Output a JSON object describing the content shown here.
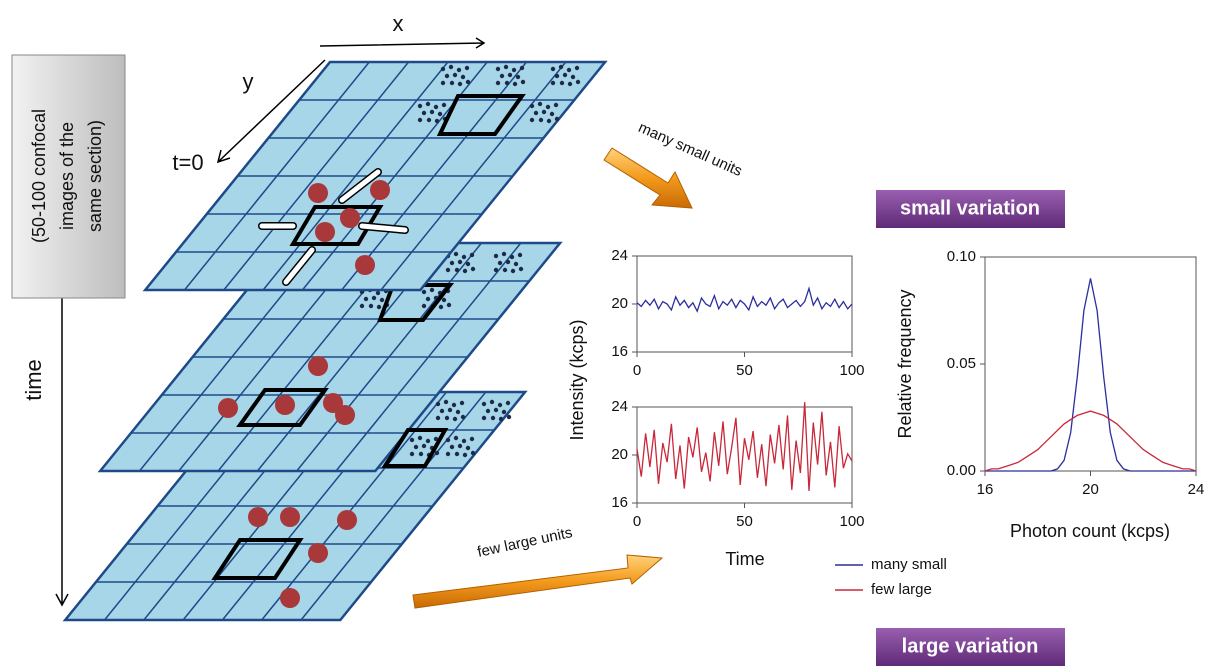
{
  "diagram": {
    "x_axis": "x",
    "y_axis": "y",
    "t0": "t=0",
    "time": "time",
    "stack_note": [
      "(50-100 confocal",
      "images of the",
      "same section)"
    ],
    "arrow_top": "many small units",
    "arrow_bottom": "few large units",
    "badge_top": "small variation",
    "badge_bottom": "large variation"
  },
  "chart_data": [
    {
      "type": "line",
      "y_label": "Intensity (kcps)",
      "color": "#2b2f9e",
      "x": [
        0,
        2,
        4,
        6,
        8,
        10,
        12,
        14,
        16,
        18,
        20,
        22,
        24,
        26,
        28,
        30,
        32,
        34,
        36,
        38,
        40,
        42,
        44,
        46,
        48,
        50,
        52,
        54,
        56,
        58,
        60,
        62,
        64,
        66,
        68,
        70,
        72,
        74,
        76,
        78,
        80,
        82,
        84,
        86,
        88,
        90,
        92,
        94,
        96,
        98,
        100
      ],
      "values": [
        20.1,
        19.8,
        20.3,
        19.9,
        20.4,
        19.6,
        20.2,
        20.0,
        19.5,
        20.6,
        19.9,
        20.3,
        19.7,
        20.1,
        19.4,
        20.5,
        20.0,
        19.8,
        20.7,
        19.6,
        20.2,
        19.9,
        20.4,
        19.7,
        20.3,
        20.0,
        19.5,
        20.6,
        19.8,
        20.2,
        19.9,
        20.5,
        19.6,
        20.1,
        20.4,
        19.7,
        20.0,
        20.3,
        19.8,
        20.2,
        21.3,
        19.9,
        20.5,
        19.6,
        20.1,
        19.8,
        20.4,
        19.7,
        20.2,
        19.6,
        20.0
      ],
      "xlim": [
        0,
        100
      ],
      "xticks": [
        0,
        50,
        100
      ],
      "ylim": [
        16,
        24
      ],
      "yticks": [
        16,
        20,
        24
      ]
    },
    {
      "type": "line",
      "x_label": "Time",
      "color": "#c8283a",
      "x": [
        0,
        2,
        4,
        6,
        8,
        10,
        12,
        14,
        16,
        18,
        20,
        22,
        24,
        26,
        28,
        30,
        32,
        34,
        36,
        38,
        40,
        42,
        44,
        46,
        48,
        50,
        52,
        54,
        56,
        58,
        60,
        62,
        64,
        66,
        68,
        70,
        72,
        74,
        76,
        78,
        80,
        82,
        84,
        86,
        88,
        90,
        92,
        94,
        96,
        98,
        100
      ],
      "values": [
        20.5,
        18.2,
        21.8,
        19.0,
        22.1,
        17.6,
        21.0,
        19.4,
        22.6,
        18.0,
        20.8,
        17.2,
        21.5,
        19.8,
        22.3,
        18.6,
        20.2,
        17.8,
        21.9,
        19.1,
        22.8,
        18.4,
        20.6,
        23.1,
        17.5,
        21.4,
        19.6,
        22.0,
        18.1,
        20.9,
        17.4,
        21.7,
        19.3,
        22.5,
        18.8,
        23.3,
        17.1,
        21.2,
        18.5,
        24.4,
        17.0,
        22.7,
        19.2,
        23.6,
        18.3,
        21.1,
        17.3,
        22.4,
        18.9,
        20.1,
        19.5
      ],
      "xlim": [
        0,
        100
      ],
      "xticks": [
        0,
        50,
        100
      ],
      "ylim": [
        16,
        24
      ],
      "yticks": [
        16,
        20,
        24
      ]
    },
    {
      "type": "line",
      "x_label": "Photon count (kcps)",
      "y_label": "Relative frequency",
      "x": [
        16,
        16.25,
        16.5,
        16.75,
        17,
        17.25,
        17.5,
        17.75,
        18,
        18.25,
        18.5,
        18.75,
        19,
        19.25,
        19.5,
        19.75,
        20,
        20.25,
        20.5,
        20.75,
        21,
        21.25,
        21.5,
        21.75,
        22,
        22.25,
        22.5,
        22.75,
        23,
        23.25,
        23.5,
        23.75,
        24
      ],
      "series": [
        {
          "name": "many small",
          "color": "#2b2f9e",
          "values": [
            0,
            0,
            0,
            0,
            0,
            0,
            0,
            0,
            0,
            0,
            0,
            0.001,
            0.005,
            0.018,
            0.044,
            0.075,
            0.09,
            0.075,
            0.044,
            0.018,
            0.005,
            0.001,
            0,
            0,
            0,
            0,
            0,
            0,
            0,
            0,
            0,
            0,
            0
          ]
        },
        {
          "name": "few large",
          "color": "#c8283a",
          "values": [
            0,
            0.001,
            0.001,
            0.002,
            0.003,
            0.004,
            0.006,
            0.008,
            0.01,
            0.013,
            0.016,
            0.019,
            0.022,
            0.024,
            0.026,
            0.027,
            0.028,
            0.027,
            0.026,
            0.024,
            0.022,
            0.019,
            0.016,
            0.013,
            0.01,
            0.008,
            0.006,
            0.004,
            0.003,
            0.002,
            0.001,
            0.001,
            0
          ]
        }
      ],
      "xlim": [
        16,
        24
      ],
      "xticks": [
        16,
        20,
        24
      ],
      "ylim": [
        0,
        0.1
      ],
      "yticks": [
        {
          "value": 0,
          "label": "0.00"
        },
        {
          "value": 0.05,
          "label": "0.05"
        },
        {
          "value": 0.1,
          "label": "0.10"
        }
      ]
    }
  ]
}
